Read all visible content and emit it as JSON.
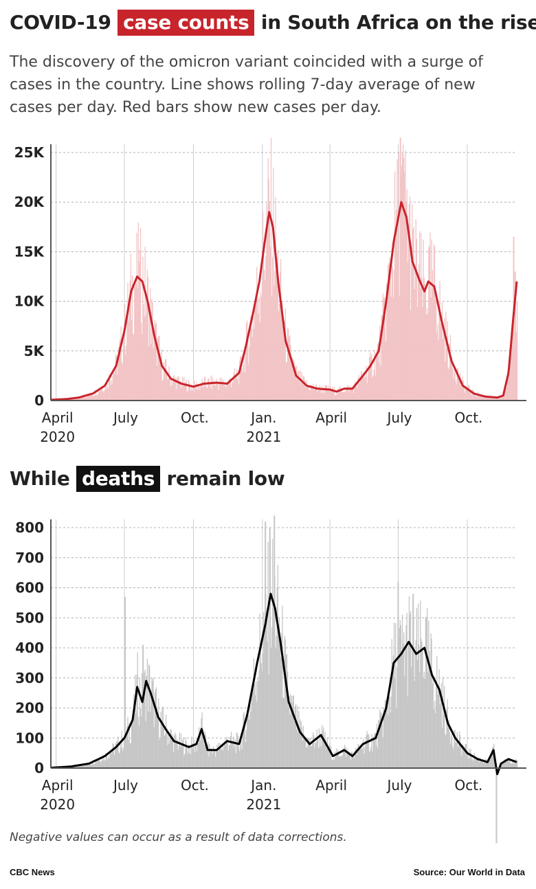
{
  "title1": {
    "pre": "COVID-19",
    "highlight": "case counts",
    "post": "in South Africa on the rise"
  },
  "subtitle": "The discovery of the omicron variant coincided with a surge of cases in the country. Line shows rolling 7-day average of new cases per day. Red bars show new cases per day.",
  "title2": {
    "pre": "While",
    "highlight": "deaths",
    "post": "remain low"
  },
  "note": "Negative values can occur as a result of data corrections.",
  "credit_left": "CBC News",
  "credit_right": "Source: Our World in Data",
  "colors": {
    "cases_bar": "#f2c4c6",
    "cases_line": "#c8242b",
    "deaths_bar": "#c6c6c6",
    "deaths_line": "#000000",
    "grid": "#b0b0b0",
    "axis": "#555555"
  },
  "x_axis": {
    "ticks": [
      {
        "date": "2020-04-01",
        "label": "April",
        "year": "2020"
      },
      {
        "date": "2020-07-01",
        "label": "July",
        "year": ""
      },
      {
        "date": "2020-10-01",
        "label": "Oct.",
        "year": ""
      },
      {
        "date": "2021-01-01",
        "label": "Jan.",
        "year": "2021"
      },
      {
        "date": "2021-04-01",
        "label": "April",
        "year": ""
      },
      {
        "date": "2021-07-01",
        "label": "July",
        "year": ""
      },
      {
        "date": "2021-10-01",
        "label": "Oct.",
        "year": ""
      }
    ]
  },
  "chart_data": [
    {
      "type": "line",
      "id": "cases",
      "series": [
        {
          "name": "new cases per day, rolling 7-day average"
        }
      ],
      "x_range": [
        "2020-03-25",
        "2021-12-06"
      ],
      "ylim": [
        0,
        25000
      ],
      "yticks": [
        0,
        5000,
        10000,
        15000,
        20000,
        25000
      ],
      "ytick_labels": [
        "0",
        "5K",
        "10K",
        "15K",
        "20K",
        "25K"
      ],
      "line_points": [
        [
          "2020-03-25",
          80
        ],
        [
          "2020-04-15",
          150
        ],
        [
          "2020-05-01",
          300
        ],
        [
          "2020-05-20",
          700
        ],
        [
          "2020-06-05",
          1500
        ],
        [
          "2020-06-20",
          3500
        ],
        [
          "2020-07-01",
          7000
        ],
        [
          "2020-07-10",
          11000
        ],
        [
          "2020-07-18",
          12500
        ],
        [
          "2020-07-25",
          12000
        ],
        [
          "2020-08-01",
          10000
        ],
        [
          "2020-08-10",
          6500
        ],
        [
          "2020-08-20",
          3500
        ],
        [
          "2020-09-01",
          2200
        ],
        [
          "2020-09-15",
          1700
        ],
        [
          "2020-10-01",
          1400
        ],
        [
          "2020-10-15",
          1700
        ],
        [
          "2020-11-01",
          1800
        ],
        [
          "2020-11-15",
          1700
        ],
        [
          "2020-12-01",
          2800
        ],
        [
          "2020-12-10",
          5500
        ],
        [
          "2020-12-20",
          9000
        ],
        [
          "2020-12-28",
          12000
        ],
        [
          "2021-01-04",
          16000
        ],
        [
          "2021-01-10",
          19000
        ],
        [
          "2021-01-15",
          17500
        ],
        [
          "2021-01-22",
          12000
        ],
        [
          "2021-02-01",
          6000
        ],
        [
          "2021-02-15",
          2500
        ],
        [
          "2021-03-01",
          1500
        ],
        [
          "2021-03-15",
          1200
        ],
        [
          "2021-04-01",
          1100
        ],
        [
          "2021-04-10",
          900
        ],
        [
          "2021-04-20",
          1200
        ],
        [
          "2021-05-01",
          1200
        ],
        [
          "2021-05-15",
          2500
        ],
        [
          "2021-05-25",
          3500
        ],
        [
          "2021-06-05",
          5000
        ],
        [
          "2021-06-15",
          10000
        ],
        [
          "2021-06-25",
          16000
        ],
        [
          "2021-07-05",
          20000
        ],
        [
          "2021-07-12",
          18500
        ],
        [
          "2021-07-20",
          14000
        ],
        [
          "2021-07-30",
          12000
        ],
        [
          "2021-08-05",
          11000
        ],
        [
          "2021-08-10",
          12000
        ],
        [
          "2021-08-18",
          11500
        ],
        [
          "2021-08-28",
          8000
        ],
        [
          "2021-09-10",
          4000
        ],
        [
          "2021-09-25",
          1500
        ],
        [
          "2021-10-10",
          700
        ],
        [
          "2021-10-25",
          400
        ],
        [
          "2021-11-10",
          300
        ],
        [
          "2021-11-18",
          500
        ],
        [
          "2021-11-25",
          2800
        ],
        [
          "2021-12-01",
          8000
        ],
        [
          "2021-12-06",
          12000
        ]
      ],
      "bar_spikes": [
        [
          "2020-07-20",
          14000
        ],
        [
          "2021-01-08",
          22000
        ],
        [
          "2021-07-03",
          26500
        ],
        [
          "2021-07-08",
          23000
        ],
        [
          "2021-12-01",
          16500
        ],
        [
          "2021-12-03",
          13000
        ]
      ]
    },
    {
      "type": "line",
      "id": "deaths",
      "series": [
        {
          "name": "new deaths per day, rolling 7-day average"
        }
      ],
      "x_range": [
        "2020-03-25",
        "2021-12-06"
      ],
      "ylim": [
        0,
        800
      ],
      "yticks": [
        0,
        100,
        200,
        300,
        400,
        500,
        600,
        700,
        800
      ],
      "ytick_labels": [
        "0",
        "100",
        "200",
        "300",
        "400",
        "500",
        "600",
        "700",
        "800"
      ],
      "line_points": [
        [
          "2020-03-25",
          1
        ],
        [
          "2020-04-20",
          5
        ],
        [
          "2020-05-15",
          15
        ],
        [
          "2020-06-05",
          40
        ],
        [
          "2020-06-20",
          70
        ],
        [
          "2020-07-01",
          100
        ],
        [
          "2020-07-12",
          160
        ],
        [
          "2020-07-18",
          270
        ],
        [
          "2020-07-25",
          220
        ],
        [
          "2020-07-30",
          290
        ],
        [
          "2020-08-05",
          250
        ],
        [
          "2020-08-15",
          170
        ],
        [
          "2020-08-25",
          130
        ],
        [
          "2020-09-05",
          90
        ],
        [
          "2020-09-15",
          80
        ],
        [
          "2020-09-25",
          70
        ],
        [
          "2020-10-05",
          80
        ],
        [
          "2020-10-12",
          130
        ],
        [
          "2020-10-20",
          60
        ],
        [
          "2020-11-01",
          60
        ],
        [
          "2020-11-15",
          90
        ],
        [
          "2020-12-01",
          80
        ],
        [
          "2020-12-12",
          180
        ],
        [
          "2020-12-25",
          350
        ],
        [
          "2021-01-05",
          480
        ],
        [
          "2021-01-12",
          580
        ],
        [
          "2021-01-18",
          530
        ],
        [
          "2021-01-25",
          420
        ],
        [
          "2021-02-05",
          220
        ],
        [
          "2021-02-20",
          120
        ],
        [
          "2021-03-05",
          80
        ],
        [
          "2021-03-20",
          110
        ],
        [
          "2021-04-05",
          40
        ],
        [
          "2021-04-20",
          60
        ],
        [
          "2021-05-01",
          40
        ],
        [
          "2021-05-15",
          80
        ],
        [
          "2021-06-01",
          100
        ],
        [
          "2021-06-15",
          200
        ],
        [
          "2021-06-25",
          350
        ],
        [
          "2021-07-05",
          380
        ],
        [
          "2021-07-15",
          420
        ],
        [
          "2021-07-25",
          380
        ],
        [
          "2021-08-05",
          400
        ],
        [
          "2021-08-15",
          310
        ],
        [
          "2021-08-25",
          260
        ],
        [
          "2021-09-05",
          150
        ],
        [
          "2021-09-15",
          100
        ],
        [
          "2021-10-01",
          50
        ],
        [
          "2021-10-15",
          30
        ],
        [
          "2021-10-28",
          20
        ],
        [
          "2021-11-05",
          60
        ],
        [
          "2021-11-10",
          -20
        ],
        [
          "2021-11-15",
          15
        ],
        [
          "2021-11-25",
          30
        ],
        [
          "2021-12-06",
          20
        ]
      ],
      "bar_spikes": [
        [
          "2020-07-01",
          570
        ],
        [
          "2020-07-25",
          410
        ],
        [
          "2021-01-04",
          820
        ],
        [
          "2021-01-10",
          800
        ],
        [
          "2021-01-16",
          840
        ],
        [
          "2021-06-30",
          620
        ],
        [
          "2021-07-20",
          580
        ],
        [
          "2021-11-08",
          -250
        ]
      ]
    }
  ]
}
